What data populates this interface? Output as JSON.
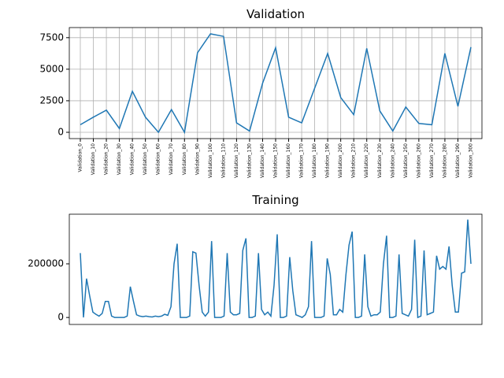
{
  "chart_data": [
    {
      "type": "line",
      "title": "Validation",
      "color": "#1f77b4",
      "grid": true,
      "categories": [
        "Validation_0",
        "Validation_10",
        "Validation_20",
        "Validation_30",
        "Validation_40",
        "Validation_50",
        "Validation_60",
        "Validation_70",
        "Validation_80",
        "Validation_90",
        "Validation_100",
        "Validation_110",
        "Validation_120",
        "Validation_130",
        "Validation_140",
        "Validation_150",
        "Validation_160",
        "Validation_170",
        "Validation_180",
        "Validation_190",
        "Validation_200",
        "Validation_210",
        "Validation_220",
        "Validation_230",
        "Validation_240",
        "Validation_250",
        "Validation_260",
        "Validation_270",
        "Validation_280",
        "Validation_290",
        "Validation_300"
      ],
      "values": [
        600,
        1200,
        1750,
        300,
        3250,
        1200,
        0,
        1800,
        0,
        6300,
        7800,
        7600,
        750,
        100,
        3900,
        6700,
        1200,
        750,
        3500,
        6250,
        2750,
        1400,
        6650,
        1700,
        100,
        2000,
        700,
        600,
        6250,
        2050,
        6750
      ],
      "ylim": [
        -500,
        8300
      ],
      "yticks": [
        0,
        2500,
        5000,
        7500
      ]
    },
    {
      "type": "line",
      "title": "Training",
      "color": "#1f77b4",
      "grid": false,
      "values": [
        240000,
        0,
        145000,
        80000,
        20000,
        12000,
        5000,
        15000,
        60000,
        60000,
        5000,
        0,
        0,
        0,
        0,
        5000,
        115000,
        60000,
        10000,
        5000,
        3000,
        5000,
        3000,
        2000,
        5000,
        3000,
        5000,
        12000,
        8000,
        40000,
        200000,
        275000,
        0,
        0,
        0,
        5000,
        245000,
        240000,
        120000,
        20000,
        5000,
        20000,
        285000,
        0,
        0,
        0,
        5000,
        240000,
        20000,
        10000,
        10000,
        15000,
        250000,
        295000,
        0,
        0,
        5000,
        240000,
        30000,
        10000,
        20000,
        5000,
        120000,
        310000,
        0,
        0,
        5000,
        225000,
        100000,
        10000,
        5000,
        0,
        10000,
        40000,
        285000,
        0,
        0,
        0,
        5000,
        220000,
        160000,
        10000,
        10000,
        30000,
        20000,
        160000,
        270000,
        320000,
        0,
        0,
        5000,
        235000,
        40000,
        5000,
        10000,
        10000,
        20000,
        200000,
        305000,
        0,
        0,
        5000,
        235000,
        15000,
        10000,
        5000,
        30000,
        290000,
        0,
        5000,
        250000,
        10000,
        15000,
        20000,
        230000,
        180000,
        190000,
        180000,
        265000,
        120000,
        20000,
        20000,
        165000,
        170000,
        365000,
        200000
      ],
      "ylim": [
        -26000,
        385000
      ],
      "yticks": [
        0,
        200000
      ]
    }
  ]
}
